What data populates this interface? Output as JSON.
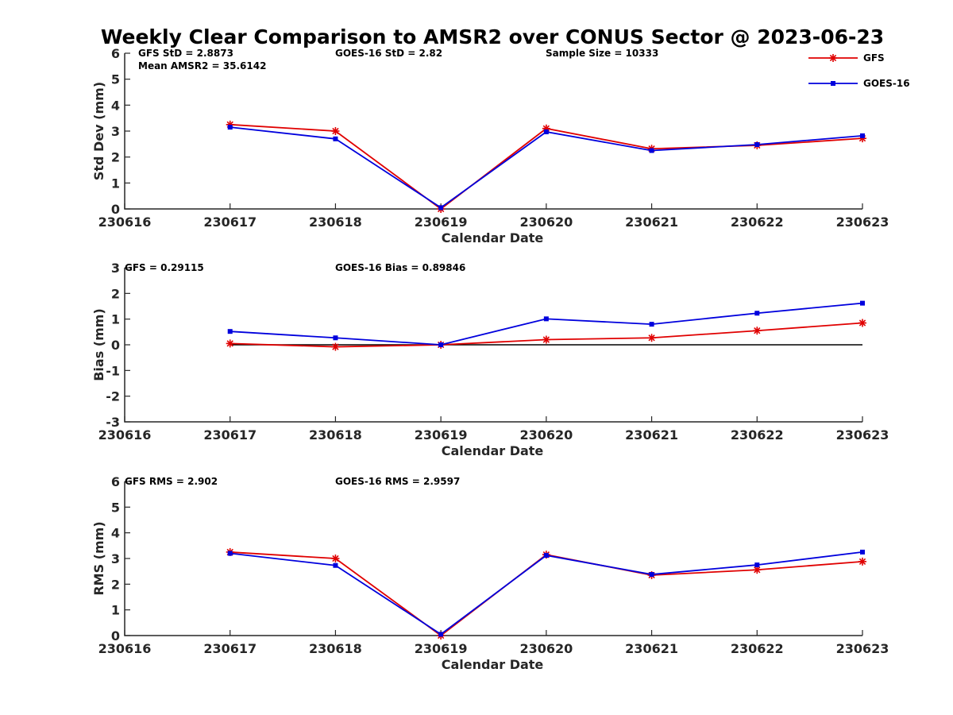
{
  "title": "Weekly Clear Comparison to AMSR2 over CONUS Sector @ 2023-06-23",
  "colors": {
    "GFS": "#e00000",
    "GOES-16": "#0000dd",
    "zero_line": "#000000"
  },
  "legend": {
    "placement": "top-right",
    "entries": [
      {
        "label": "GFS",
        "color": "#e00000",
        "marker": "asterisk"
      },
      {
        "label": "GOES-16",
        "color": "#0000dd",
        "marker": "square"
      }
    ]
  },
  "chart_data": [
    {
      "type": "line",
      "xlabel": "Calendar Date",
      "ylabel": "Std Dev (mm)",
      "categories": [
        "230616",
        "230617",
        "230618",
        "230619",
        "230620",
        "230621",
        "230622",
        "230623"
      ],
      "ylim": [
        0,
        6
      ],
      "yticks": [
        "0",
        "1",
        "2",
        "3",
        "4",
        "5",
        "6"
      ],
      "annotations": [
        "GFS StD = 2.8873",
        "Mean AMSR2 = 35.6142",
        "GOES-16 StD = 2.82",
        "Sample Size = 10333"
      ],
      "series": [
        {
          "name": "GFS",
          "values": [
            null,
            3.25,
            3.0,
            0.0,
            3.1,
            2.32,
            2.45,
            2.72
          ]
        },
        {
          "name": "GOES-16",
          "values": [
            null,
            3.15,
            2.7,
            0.05,
            2.97,
            2.25,
            2.48,
            2.82
          ]
        }
      ]
    },
    {
      "type": "line",
      "xlabel": "Calendar Date",
      "ylabel": "Bias (mm)",
      "categories": [
        "230616",
        "230617",
        "230618",
        "230619",
        "230620",
        "230621",
        "230622",
        "230623"
      ],
      "ylim": [
        -3,
        3
      ],
      "yticks": [
        "-3",
        "-2",
        "-1",
        "0",
        "1",
        "2",
        "3"
      ],
      "zero_line": true,
      "annotations": [
        "GFS = 0.29115",
        "GOES-16 Bias  = 0.89846"
      ],
      "series": [
        {
          "name": "GFS",
          "values": [
            null,
            0.05,
            -0.08,
            0.0,
            0.2,
            0.27,
            0.55,
            0.85
          ]
        },
        {
          "name": "GOES-16",
          "values": [
            null,
            0.52,
            0.27,
            0.0,
            1.01,
            0.8,
            1.23,
            1.62
          ]
        }
      ]
    },
    {
      "type": "line",
      "xlabel": "Calendar Date",
      "ylabel": "RMS (mm)",
      "categories": [
        "230616",
        "230617",
        "230618",
        "230619",
        "230620",
        "230621",
        "230622",
        "230623"
      ],
      "ylim": [
        0,
        6
      ],
      "yticks": [
        "0",
        "1",
        "2",
        "3",
        "4",
        "5",
        "6"
      ],
      "annotations": [
        "GFS RMS = 2.902",
        "GOES-16 RMS = 2.9597"
      ],
      "series": [
        {
          "name": "GFS",
          "values": [
            null,
            3.25,
            3.0,
            0.0,
            3.15,
            2.35,
            2.56,
            2.88
          ]
        },
        {
          "name": "GOES-16",
          "values": [
            null,
            3.2,
            2.73,
            0.05,
            3.12,
            2.38,
            2.75,
            3.25
          ]
        }
      ]
    }
  ]
}
